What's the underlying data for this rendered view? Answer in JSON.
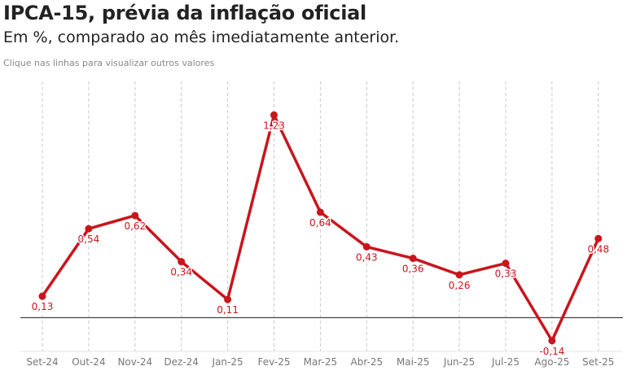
{
  "chart_data": {
    "type": "line",
    "title": "IPCA-15, prévia da inflação oficial",
    "subtitle": "Em %, comparado ao mês imediatamente anterior.",
    "note": "Clique nas linhas para visualizar outros valores",
    "categories": [
      "Set-24",
      "Out-24",
      "Nov-24",
      "Dez-24",
      "Jan-25",
      "Fev-25",
      "Mar-25",
      "Abr-25",
      "Mai-25",
      "Jun-25",
      "Jul-25",
      "Ago-25",
      "Set-25"
    ],
    "values": [
      0.13,
      0.54,
      0.62,
      0.34,
      0.11,
      1.23,
      0.64,
      0.43,
      0.36,
      0.26,
      0.33,
      -0.14,
      0.48
    ],
    "labels": [
      "0,13",
      "0,54",
      "0,62",
      "0,34",
      "0,11",
      "1,23",
      "0,64",
      "0,43",
      "0,36",
      "0,26",
      "0,33",
      "-0,14",
      "0,48"
    ],
    "line_color": "#c8161d",
    "grid": "vertical dashed",
    "ylim": [
      -0.2,
      1.45
    ]
  }
}
